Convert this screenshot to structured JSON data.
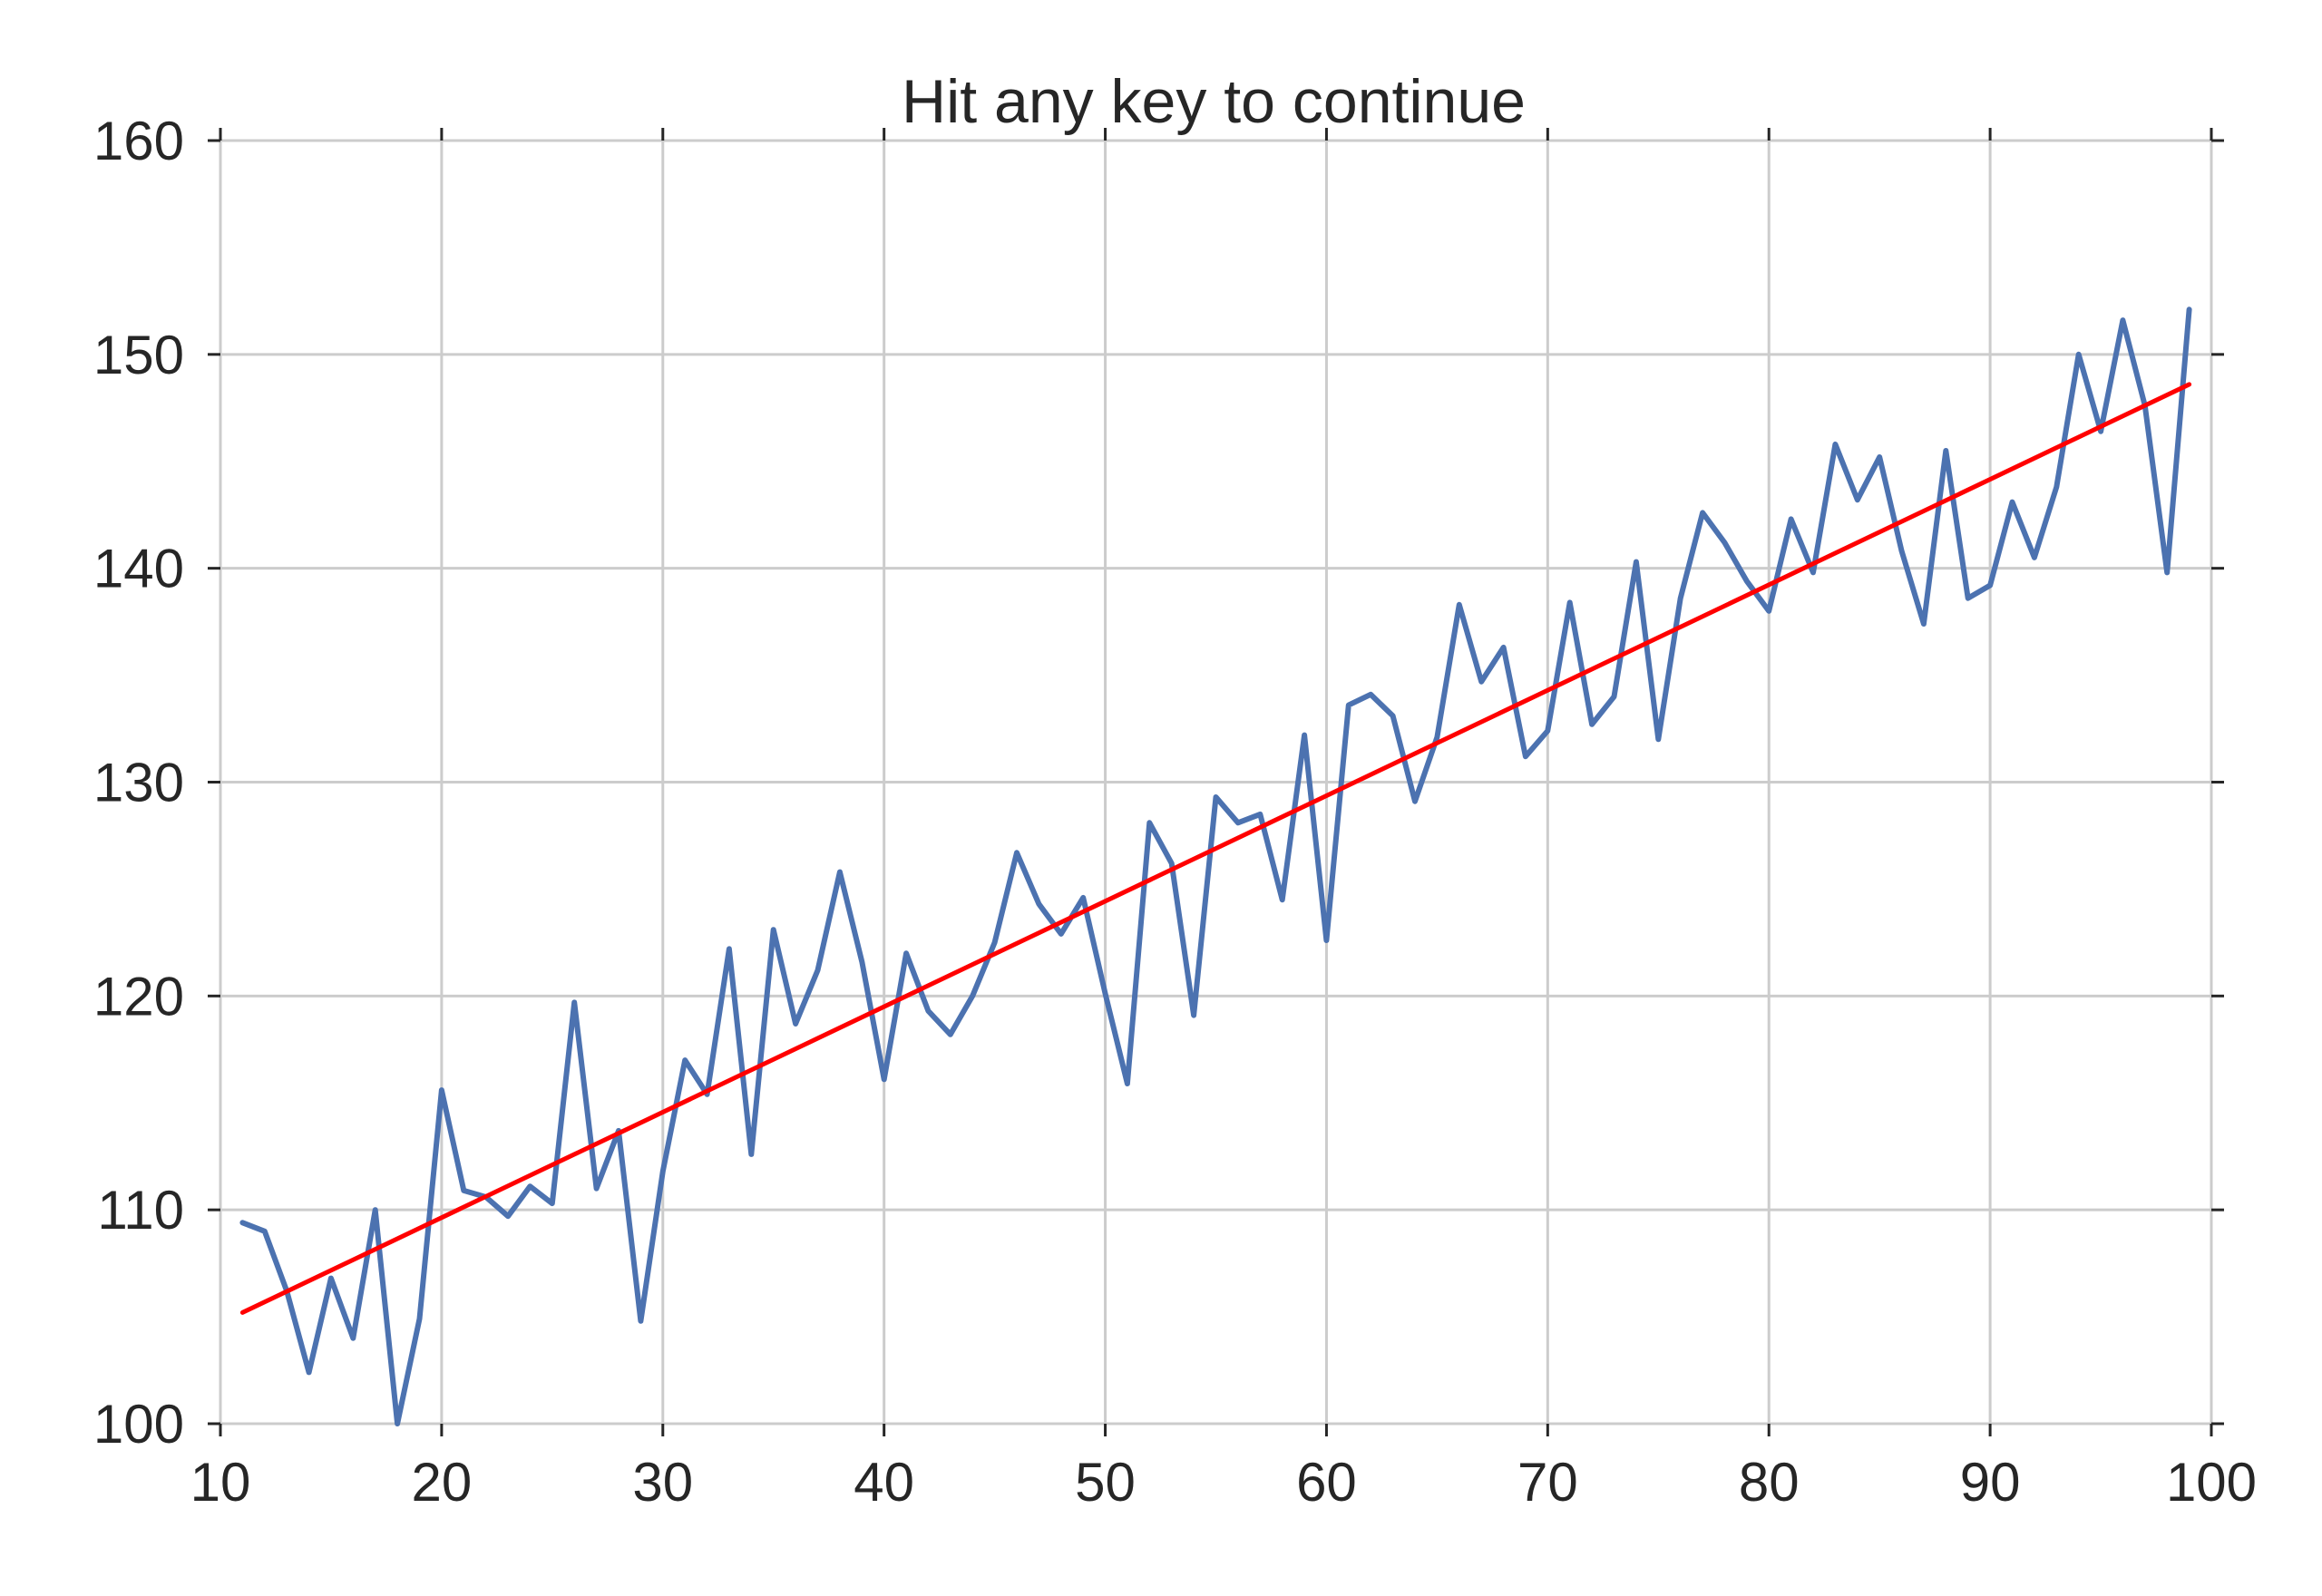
{
  "chart_data": {
    "type": "line",
    "title": "Hit any key to continue",
    "xlabel": "",
    "ylabel": "",
    "xlim": [
      10,
      100
    ],
    "ylim": [
      100,
      160
    ],
    "xticks": [
      10,
      20,
      30,
      40,
      50,
      60,
      70,
      80,
      90,
      100
    ],
    "yticks": [
      100,
      110,
      120,
      130,
      140,
      150,
      160
    ],
    "grid": true,
    "colors": {
      "data": "#4c72b0",
      "fit": "#ff0000",
      "grid": "#cccccc",
      "text": "#262626"
    },
    "series": [
      {
        "x": [
          11,
          12,
          13,
          14,
          15,
          16,
          17,
          18,
          19,
          20,
          21,
          22,
          23,
          24,
          25,
          26,
          27,
          28,
          29,
          30,
          31,
          32,
          33,
          34,
          35,
          36,
          37,
          38,
          39,
          40,
          41,
          42,
          43,
          44,
          45,
          46,
          47,
          48,
          49,
          50,
          51,
          52,
          53,
          54,
          55,
          56,
          57,
          58,
          59,
          60,
          61,
          62,
          63,
          64,
          65,
          66,
          67,
          68,
          69,
          70,
          71,
          72,
          73,
          74,
          75,
          76,
          77,
          78,
          79,
          80,
          81,
          82,
          83,
          84,
          85,
          86,
          87,
          88,
          89,
          90,
          91,
          92,
          93,
          94,
          95,
          96,
          97,
          98,
          99
        ],
        "values": [
          109.4,
          109.0,
          106.2,
          102.4,
          106.8,
          104.0,
          110.0,
          100.0,
          104.9,
          115.6,
          110.9,
          110.6,
          109.7,
          111.1,
          110.3,
          119.7,
          111.0,
          113.7,
          104.8,
          111.8,
          117.0,
          115.4,
          122.2,
          112.6,
          123.1,
          118.7,
          121.2,
          125.8,
          121.6,
          116.1,
          122.0,
          119.3,
          118.2,
          120.0,
          122.5,
          126.7,
          124.3,
          122.9,
          124.6,
          120.1,
          115.9,
          128.1,
          126.2,
          119.1,
          129.3,
          128.1,
          128.5,
          124.5,
          132.2,
          122.6,
          133.6,
          134.1,
          133.1,
          129.1,
          132.1,
          138.3,
          134.7,
          136.3,
          131.2,
          132.4,
          138.4,
          132.7,
          134.0,
          140.3,
          132.0,
          138.6,
          142.6,
          141.2,
          139.4,
          138.0,
          142.3,
          139.8,
          145.8,
          143.2,
          145.2,
          140.8,
          137.4,
          145.5,
          138.6,
          139.2,
          143.1,
          140.5,
          143.8,
          150.0,
          146.4,
          151.6,
          147.6,
          139.8,
          152.1
        ]
      },
      {
        "x": [
          11,
          99
        ],
        "values": [
          105.2,
          148.6
        ]
      }
    ]
  }
}
